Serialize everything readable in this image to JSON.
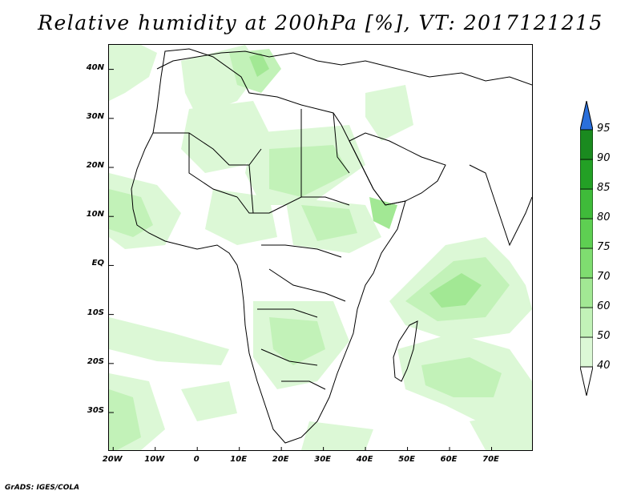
{
  "title": "Relative humidity at 200hPa [%], VT: 2017121215",
  "footer": "GrADS: IGES/COLA",
  "map": {
    "variable": "Relative humidity at 200hPa",
    "units": "%",
    "valid_time": "2017121215",
    "lon_range": [
      -21,
      80
    ],
    "lat_range": [
      -38,
      45
    ],
    "lat_ticks": [
      {
        "value": 40,
        "label": "40N"
      },
      {
        "value": 30,
        "label": "30N"
      },
      {
        "value": 20,
        "label": "20N"
      },
      {
        "value": 10,
        "label": "10N"
      },
      {
        "value": 0,
        "label": "EQ"
      },
      {
        "value": -10,
        "label": "10S"
      },
      {
        "value": -20,
        "label": "20S"
      },
      {
        "value": -30,
        "label": "30S"
      }
    ],
    "lon_ticks": [
      {
        "value": -20,
        "label": "20W"
      },
      {
        "value": -10,
        "label": "10W"
      },
      {
        "value": 0,
        "label": "0"
      },
      {
        "value": 10,
        "label": "10E"
      },
      {
        "value": 20,
        "label": "20E"
      },
      {
        "value": 30,
        "label": "30E"
      },
      {
        "value": 40,
        "label": "40E"
      },
      {
        "value": 50,
        "label": "50E"
      },
      {
        "value": 60,
        "label": "60E"
      },
      {
        "value": 70,
        "label": "70E"
      }
    ]
  },
  "colorbar": {
    "levels": [
      "40",
      "50",
      "60",
      "70",
      "75",
      "80",
      "85",
      "90",
      "95"
    ],
    "colors": [
      "#f2fdf2",
      "#dcf8d6",
      "#c2f2b8",
      "#a2e894",
      "#7fdd70",
      "#5ecf52",
      "#3fbb3a",
      "#23a025",
      "#1a8a1f"
    ],
    "over_color": "#2a6fdb",
    "under_color": "#ffffff"
  },
  "colors": {
    "frame": "#000000",
    "coastline": "#000000",
    "background": "#ffffff"
  }
}
